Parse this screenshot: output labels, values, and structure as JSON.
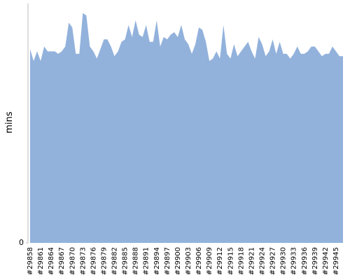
{
  "chart_data": {
    "type": "area",
    "y_label": "mins",
    "color": "#92b2dc",
    "categories": [
      "#29858",
      null,
      null,
      "#29861",
      null,
      null,
      "#29864",
      null,
      null,
      "#29867",
      null,
      null,
      "#29870",
      null,
      null,
      "#29873",
      null,
      null,
      "#29876",
      null,
      null,
      "#29879",
      null,
      null,
      "#29882",
      null,
      null,
      "#29885",
      null,
      null,
      "#29888",
      null,
      null,
      "#29891",
      null,
      null,
      "#29894",
      null,
      null,
      "#29897",
      null,
      null,
      "#29900",
      null,
      null,
      "#29903",
      null,
      null,
      "#29906",
      null,
      null,
      "#29909",
      null,
      null,
      "#29912",
      null,
      null,
      "#29915",
      null,
      null,
      "#29918",
      null,
      null,
      "#29921",
      null,
      null,
      "#29924",
      null,
      null,
      "#29927",
      null,
      null,
      "#29930",
      null,
      null,
      "#29933",
      null,
      null,
      "#29936",
      null,
      null,
      "#29939",
      null,
      null,
      "#29942",
      null,
      null,
      "#29945",
      null,
      null
    ],
    "values": [
      81,
      76,
      80,
      76,
      82,
      80,
      80,
      80,
      79,
      80,
      82,
      92,
      90,
      79,
      79,
      96,
      95,
      82,
      80,
      77,
      81,
      85,
      85,
      82,
      78,
      80,
      84,
      85,
      91,
      86,
      93,
      87,
      86,
      91,
      84,
      84,
      93,
      82,
      86,
      85,
      87,
      88,
      86,
      91,
      85,
      83,
      79,
      83,
      90,
      89,
      84,
      76,
      77,
      80,
      77,
      91,
      79,
      77,
      83,
      78,
      80,
      82,
      84,
      80,
      77,
      86,
      83,
      78,
      80,
      85,
      79,
      84,
      79,
      79,
      77,
      79,
      82,
      79,
      79,
      80,
      82,
      82,
      80,
      78,
      79,
      79,
      82,
      80,
      78,
      78
    ],
    "ylim": [
      0,
      100
    ],
    "yticks": [
      0
    ]
  }
}
